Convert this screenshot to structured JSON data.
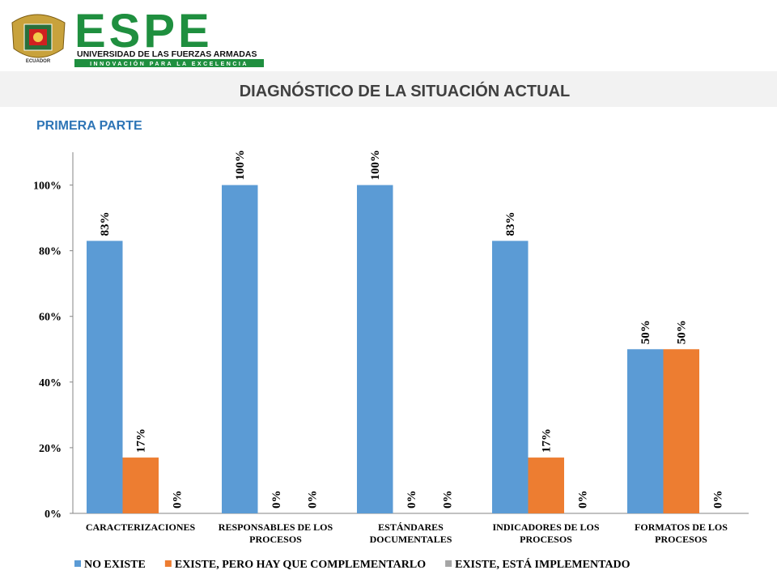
{
  "header": {
    "brand": "ESPE",
    "university": "UNIVERSIDAD DE LAS FUERZAS ARMADAS",
    "motto": "INNOVACIÓN PARA LA EXCELENCIA",
    "country": "ECUADOR"
  },
  "title": "DIAGNÓSTICO DE LA SITUACIÓN ACTUAL",
  "subtitle": "PRIMERA PARTE",
  "chart_data": {
    "type": "bar",
    "categories": [
      "CARACTERIZACIONES",
      "RESPONSABLES DE LOS PROCESOS",
      "ESTÁNDARES DOCUMENTALES",
      "INDICADORES DE LOS PROCESOS",
      "FORMATOS DE LOS PROCESOS"
    ],
    "series": [
      {
        "name": "NO EXISTE",
        "color": "#5b9bd5",
        "values": [
          83,
          100,
          100,
          83,
          50
        ],
        "value_labels": [
          "83%",
          "100%",
          "100%",
          "83%",
          "50%"
        ]
      },
      {
        "name": "EXISTE, PERO HAY QUE COMPLEMENTARLO",
        "color": "#ed7d31",
        "values": [
          17,
          0,
          0,
          17,
          50
        ],
        "value_labels": [
          "17%",
          "0%",
          "0%",
          "17%",
          "50%"
        ]
      },
      {
        "name": "EXISTE, ESTÁ IMPLEMENTADO",
        "color": "#a5a5a5",
        "values": [
          0,
          0,
          0,
          0,
          0
        ],
        "value_labels": [
          "0%",
          "0%",
          "0%",
          "0%",
          "0%"
        ]
      }
    ],
    "ylim": [
      0,
      110
    ],
    "yticks": [
      {
        "value": 0,
        "label": "0%"
      },
      {
        "value": 20,
        "label": "20%"
      },
      {
        "value": 40,
        "label": "40%"
      },
      {
        "value": 60,
        "label": "60%"
      },
      {
        "value": 80,
        "label": "80%"
      },
      {
        "value": 100,
        "label": "100%"
      }
    ],
    "grid": false,
    "legend": "bottom"
  }
}
